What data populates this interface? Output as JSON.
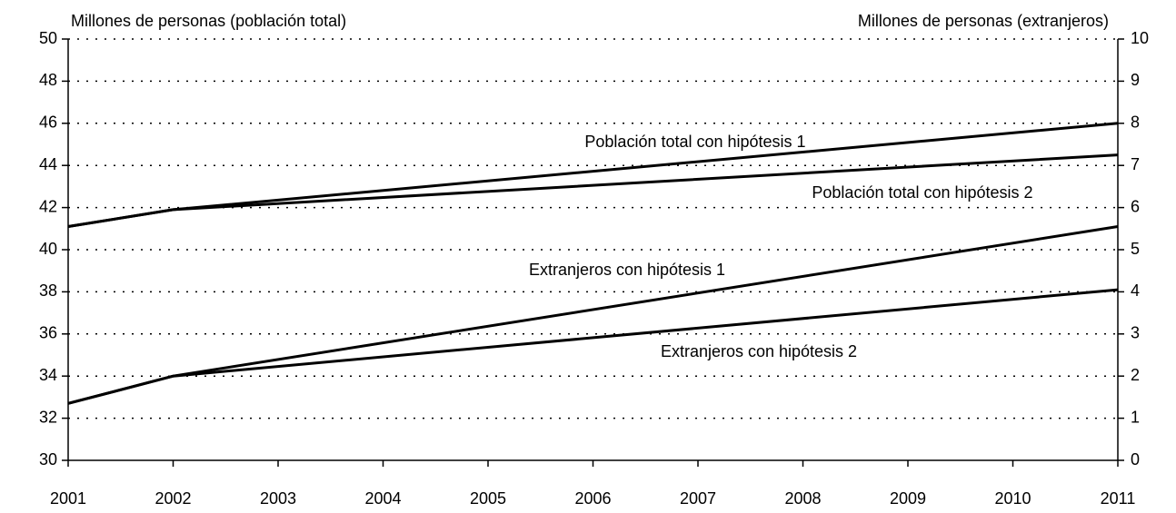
{
  "chart_data": {
    "type": "line",
    "ylabel": "Millones de personas (población total)",
    "y2label": "Millones de personas (extranjeros)",
    "x": [
      2001,
      2002,
      2011
    ],
    "xlim": [
      2001,
      2011
    ],
    "xticks": [
      2001,
      2002,
      2003,
      2004,
      2005,
      2006,
      2007,
      2008,
      2009,
      2010,
      2011
    ],
    "ylim": [
      30,
      50
    ],
    "yticks": [
      30,
      32,
      34,
      36,
      38,
      40,
      42,
      44,
      46,
      48,
      50
    ],
    "y2lim": [
      0,
      10
    ],
    "y2ticks": [
      0,
      1,
      2,
      3,
      4,
      5,
      6,
      7,
      8,
      9,
      10
    ],
    "grid": true,
    "series": [
      {
        "name": "Población total con hipótesis 1",
        "color": "#000000",
        "values": [
          41.1,
          41.9,
          46.0
        ]
      },
      {
        "name": "Población total con hipótesis 2",
        "color": "#000000",
        "values": [
          41.1,
          41.9,
          44.5
        ]
      },
      {
        "name": "Extranjeros con hipótesis 1",
        "color": "#000000",
        "axis": "y2",
        "values": [
          1.35,
          2.0,
          5.55
        ]
      },
      {
        "name": "Extranjeros con hipótesis 2",
        "color": "#000000",
        "axis": "y2",
        "values": [
          1.35,
          2.0,
          4.05
        ]
      }
    ]
  }
}
